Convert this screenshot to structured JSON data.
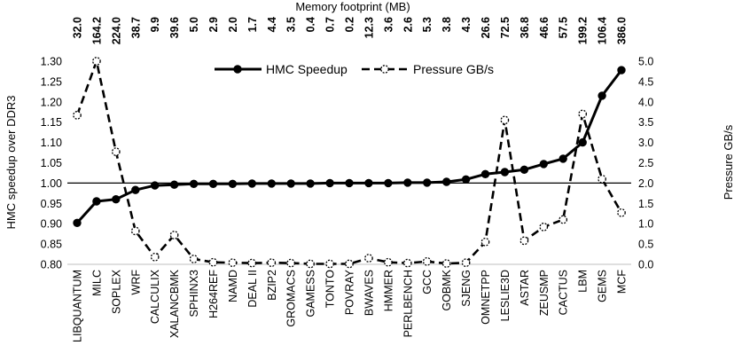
{
  "chart_data": {
    "type": "line",
    "top_title": "Memory footprint (MB)",
    "ylabel": "HMC speedup over DDR3",
    "y2label": "Pressure GB/s",
    "ylim": [
      0.8,
      1.3
    ],
    "y_ticks": [
      "0.80",
      "0.85",
      "0.90",
      "0.95",
      "1.00",
      "1.05",
      "1.10",
      "1.15",
      "1.20",
      "1.25",
      "1.30"
    ],
    "y2lim": [
      0.0,
      5.0
    ],
    "y2_ticks": [
      "0.0",
      "0.5",
      "1.0",
      "1.5",
      "2.0",
      "2.5",
      "3.0",
      "3.5",
      "4.0",
      "4.5",
      "5.0"
    ],
    "reference_line": 1.0,
    "legend_position": "top-center",
    "categories": [
      "LIBQUANTUM",
      "MILC",
      "SOPLEX",
      "WRF",
      "CALCULIX",
      "XALANCBMK",
      "SPHINX3",
      "H264REF",
      "NAMD",
      "DEAL II",
      "BZIP2",
      "GROMACS",
      "GAMESS",
      "TONTO",
      "POVRAY",
      "BWAVES",
      "HMMER",
      "PERLBENCH",
      "GCC",
      "GOBMK",
      "SJENG",
      "OMNETPP",
      "LESLIE3D",
      "ASTAR",
      "ZEUSMP",
      "CACTUS",
      "LBM",
      "GEMS",
      "MCF"
    ],
    "memory_footprint": [
      "32.0",
      "164.2",
      "224.0",
      "38.7",
      "9.9",
      "39.6",
      "5.0",
      "2.9",
      "2.0",
      "1.7",
      "4.4",
      "3.5",
      "0.4",
      "0.7",
      "0.2",
      "12.3",
      "3.6",
      "2.6",
      "5.3",
      "3.8",
      "4.3",
      "26.6",
      "72.5",
      "36.8",
      "46.6",
      "57.5",
      "199.2",
      "106.4",
      "386.0"
    ],
    "series": [
      {
        "name": "HMC Speedup",
        "axis": "left",
        "style": "solid",
        "marker": "filled-circle",
        "values": [
          0.902,
          0.955,
          0.96,
          0.983,
          0.994,
          0.996,
          0.998,
          0.998,
          0.998,
          0.999,
          0.999,
          0.999,
          0.999,
          1.0,
          1.0,
          1.0,
          1.0,
          1.001,
          1.001,
          1.003,
          1.009,
          1.022,
          1.027,
          1.033,
          1.047,
          1.06,
          1.1,
          1.215,
          1.278
        ]
      },
      {
        "name": "Pressure GB/s",
        "axis": "right",
        "style": "dashed",
        "marker": "open-circle",
        "values": [
          3.67,
          5.0,
          2.77,
          0.82,
          0.18,
          0.72,
          0.13,
          0.05,
          0.04,
          0.03,
          0.04,
          0.03,
          0.01,
          0.01,
          0.01,
          0.15,
          0.05,
          0.03,
          0.07,
          0.02,
          0.04,
          0.55,
          3.55,
          0.58,
          0.92,
          1.1,
          3.7,
          2.1,
          1.27
        ]
      }
    ]
  }
}
